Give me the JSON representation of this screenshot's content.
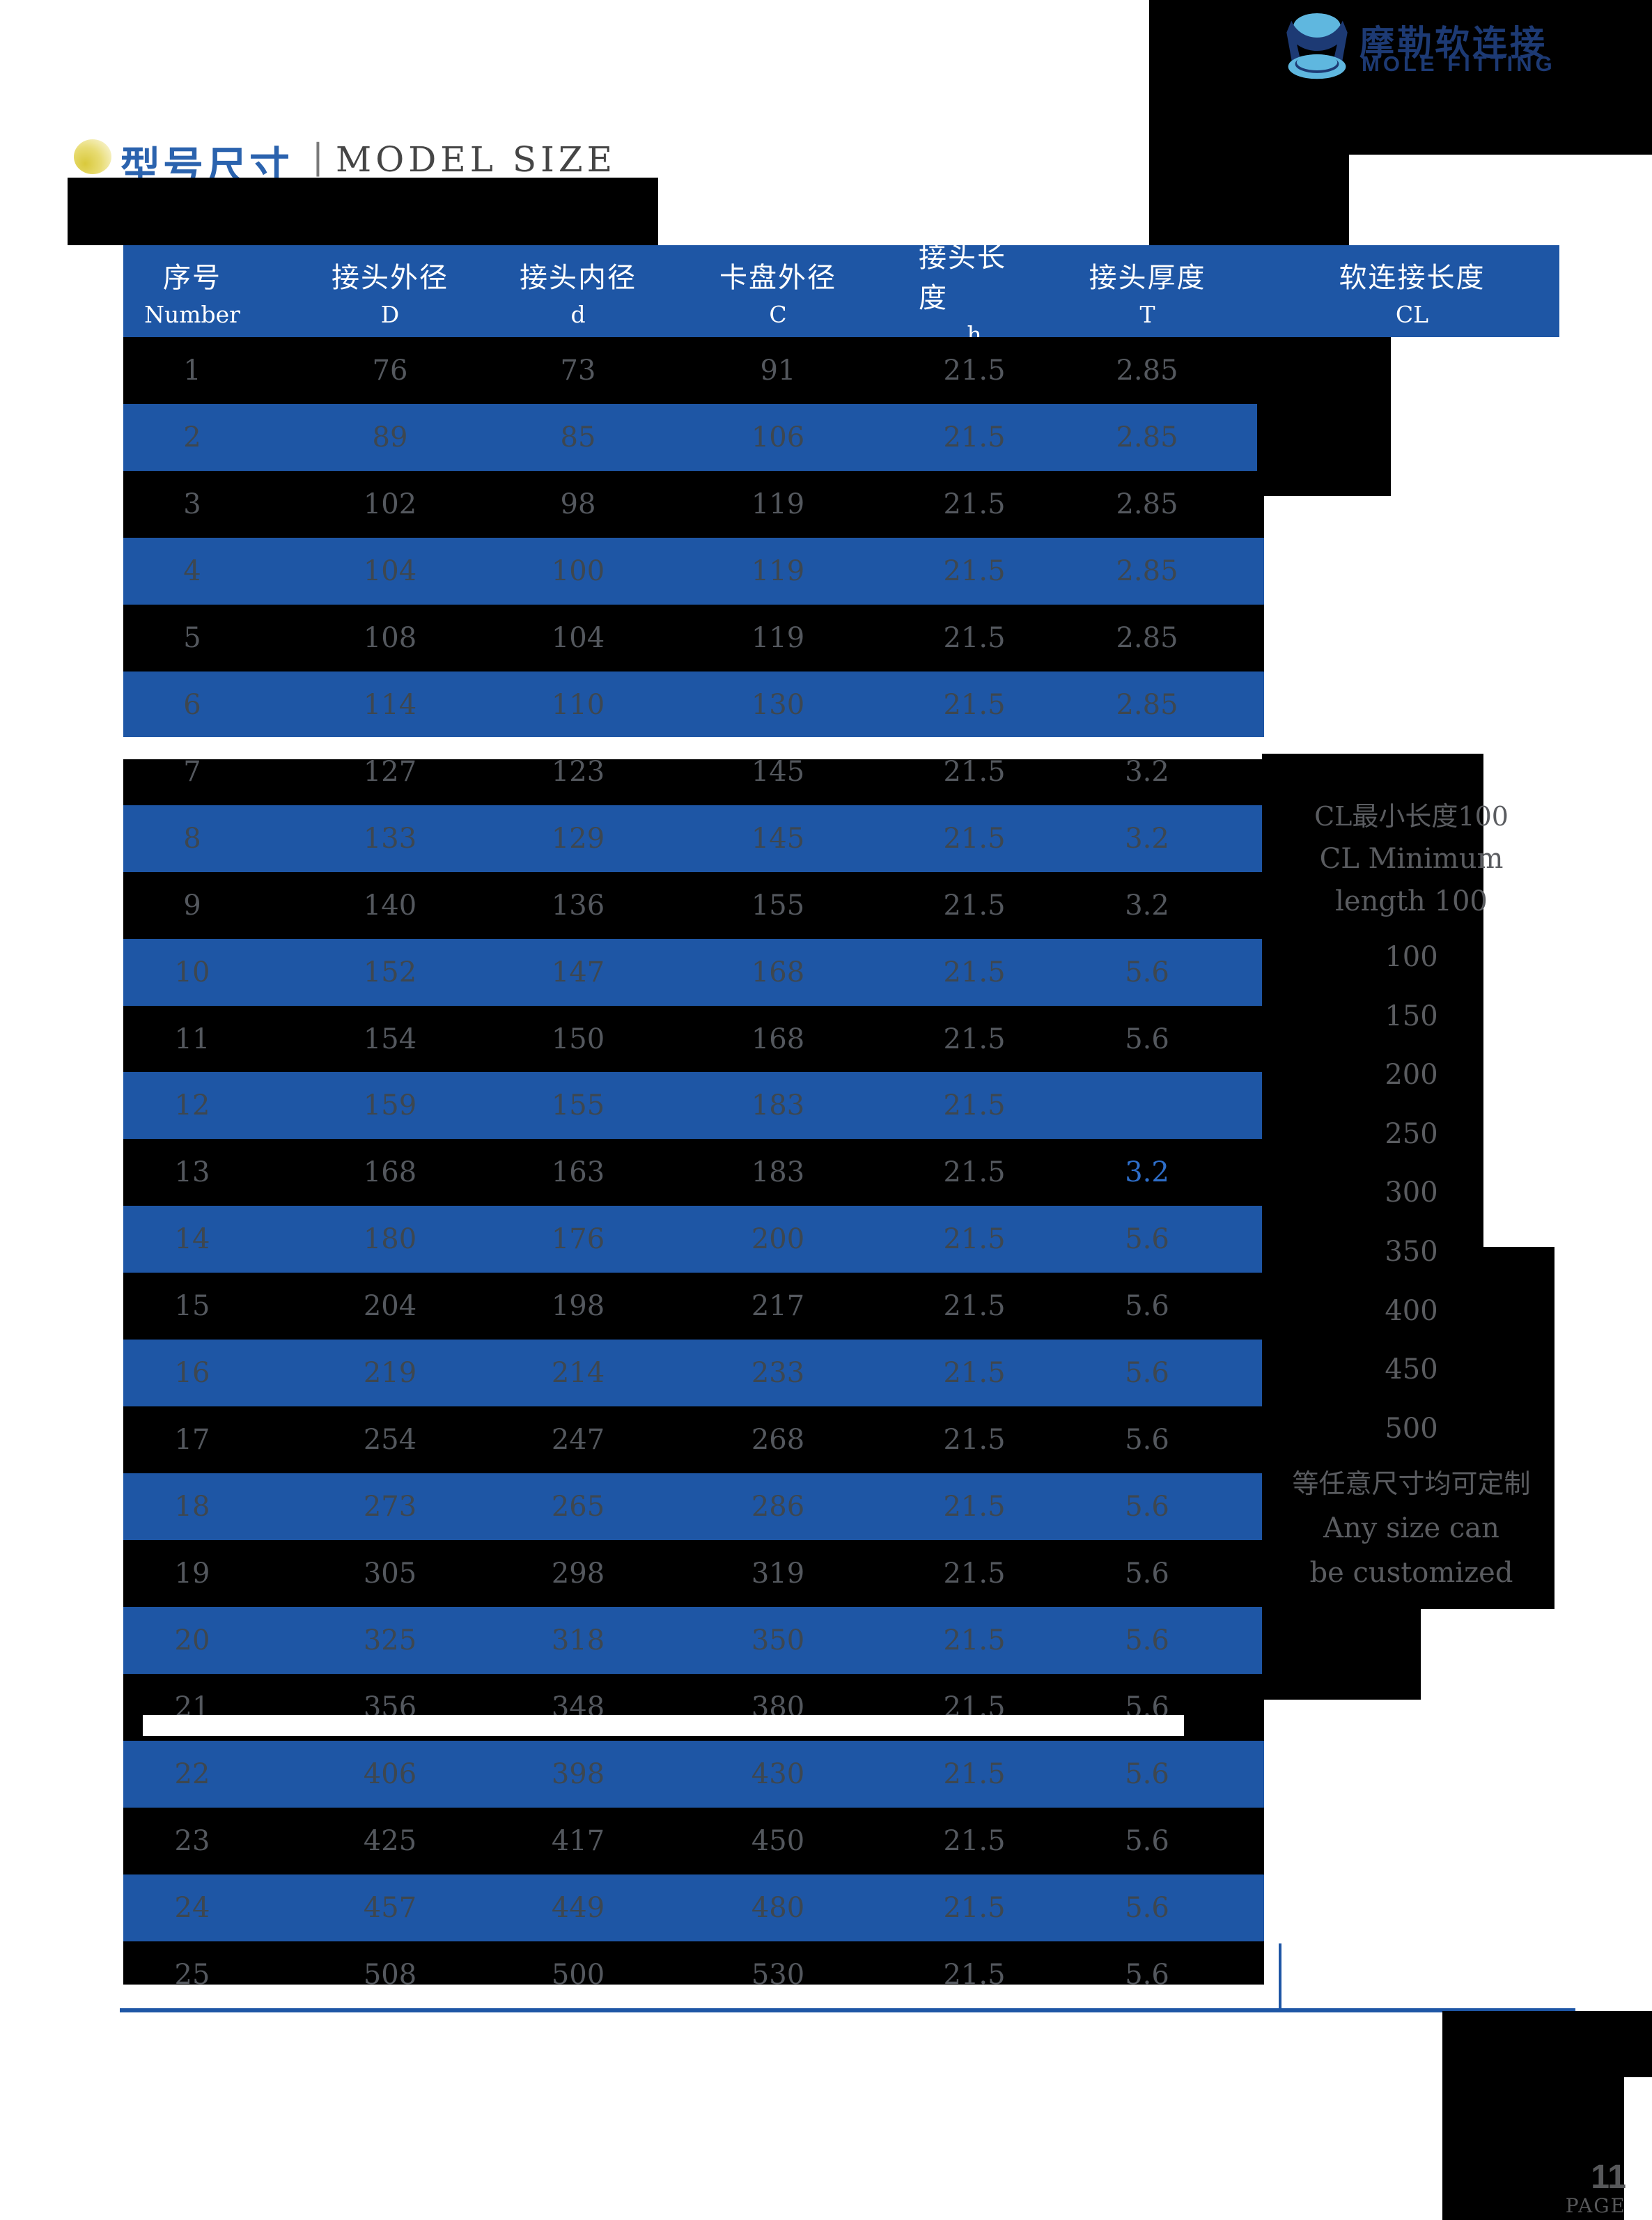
{
  "logo": {
    "name_cn": "摩勒软连接",
    "name_en": "MOLE FITTING"
  },
  "section": {
    "title_cn": "型号尺寸",
    "separator": "|",
    "title_en": "MODEL SIZE"
  },
  "table": {
    "headers": [
      {
        "cn": "序号",
        "sub": "Number"
      },
      {
        "cn": "接头外径",
        "sub": "D"
      },
      {
        "cn": "接头内径",
        "sub": "d"
      },
      {
        "cn": "卡盘外径",
        "sub": "C"
      },
      {
        "cn": "接头长度",
        "sub": "h"
      },
      {
        "cn": "接头厚度",
        "sub": "T"
      },
      {
        "cn": "软连接长度",
        "sub": "CL"
      }
    ],
    "rows": [
      [
        "1",
        "76",
        "73",
        "91",
        "21.5",
        "2.85"
      ],
      [
        "2",
        "89",
        "85",
        "106",
        "21.5",
        "2.85"
      ],
      [
        "3",
        "102",
        "98",
        "119",
        "21.5",
        "2.85"
      ],
      [
        "4",
        "104",
        "100",
        "119",
        "21.5",
        "2.85"
      ],
      [
        "5",
        "108",
        "104",
        "119",
        "21.5",
        "2.85"
      ],
      [
        "6",
        "114",
        "110",
        "130",
        "21.5",
        "2.85"
      ],
      [
        "7",
        "127",
        "123",
        "145",
        "21.5",
        "3.2"
      ],
      [
        "8",
        "133",
        "129",
        "145",
        "21.5",
        "3.2"
      ],
      [
        "9",
        "140",
        "136",
        "155",
        "21.5",
        "3.2"
      ],
      [
        "10",
        "152",
        "147",
        "168",
        "21.5",
        "5.6"
      ],
      [
        "11",
        "154",
        "150",
        "168",
        "21.5",
        "5.6"
      ],
      [
        "12",
        "159",
        "155",
        "183",
        "21.5",
        ""
      ],
      [
        "13",
        "168",
        "163",
        "183",
        "21.5",
        "3.2"
      ],
      [
        "14",
        "180",
        "176",
        "200",
        "21.5",
        "5.6"
      ],
      [
        "15",
        "204",
        "198",
        "217",
        "21.5",
        "5.6"
      ],
      [
        "16",
        "219",
        "214",
        "233",
        "21.5",
        "5.6"
      ],
      [
        "17",
        "254",
        "247",
        "268",
        "21.5",
        "5.6"
      ],
      [
        "18",
        "273",
        "265",
        "286",
        "21.5",
        "5.6"
      ],
      [
        "19",
        "305",
        "298",
        "319",
        "21.5",
        "5.6"
      ],
      [
        "20",
        "325",
        "318",
        "350",
        "21.5",
        "5.6"
      ],
      [
        "21",
        "356",
        "348",
        "380",
        "21.5",
        "5.6"
      ],
      [
        "22",
        "406",
        "398",
        "430",
        "21.5",
        "5.6"
      ],
      [
        "23",
        "425",
        "417",
        "450",
        "21.5",
        "5.6"
      ],
      [
        "24",
        "457",
        "449",
        "480",
        "21.5",
        "5.6"
      ],
      [
        "25",
        "508",
        "500",
        "530",
        "21.5",
        "5.6"
      ]
    ],
    "highlight_cell": {
      "row_number": "13",
      "column": "T",
      "value": "3.2"
    }
  },
  "cl_column": {
    "note_lines": [
      "CL最小长度100",
      "CL Minimum",
      "length 100"
    ],
    "lengths": [
      "100",
      "150",
      "200",
      "250",
      "300",
      "350",
      "400",
      "450",
      "500"
    ],
    "custom_lines": [
      "等任意尺寸均可定制",
      "Any size can",
      "be customized"
    ]
  },
  "footer": {
    "page_number": "11",
    "page_label": "PAGE"
  },
  "colors": {
    "accent_blue": "#1e56a5",
    "logo_navy": "#1d3a74",
    "logo_light_blue": "#5fb7df",
    "highlight_blue": "#2e6ec9",
    "bullet_yellow": "#d9c93c",
    "text_gray": "#54585e"
  }
}
